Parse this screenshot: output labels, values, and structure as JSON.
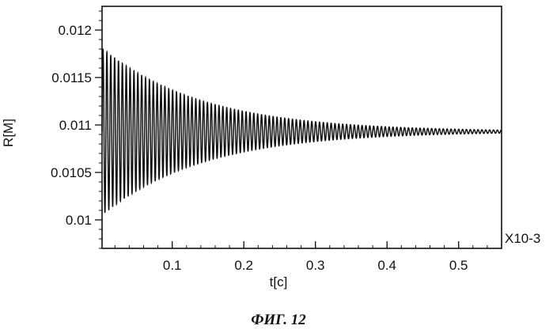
{
  "chart_data": {
    "type": "line",
    "xlabel": "t[c]",
    "ylabel": "R[M]",
    "x_multiplier": "X10-3",
    "xlim": [
      0.002,
      0.56
    ],
    "ylim": [
      0.0097,
      0.01225
    ],
    "x_ticks": [
      {
        "value": 0.1,
        "label": "0.1"
      },
      {
        "value": 0.2,
        "label": "0.2"
      },
      {
        "value": 0.3,
        "label": "0.3"
      },
      {
        "value": 0.4,
        "label": "0.4"
      },
      {
        "value": 0.5,
        "label": "0.5"
      }
    ],
    "y_ticks": [
      {
        "value": 0.01,
        "label": "0.01"
      },
      {
        "value": 0.0105,
        "label": "0.0105"
      },
      {
        "value": 0.011,
        "label": "0.011"
      },
      {
        "value": 0.0115,
        "label": "0.0115"
      },
      {
        "value": 0.012,
        "label": "0.012"
      }
    ],
    "grid": false,
    "series": [
      {
        "equilibrium": 0.01093,
        "initial_amplitude": 0.00088,
        "decay_time": 0.14,
        "start_time": 0.002,
        "period": 0.0054,
        "color": "#111111"
      }
    ]
  },
  "caption": "ФИГ. 12"
}
